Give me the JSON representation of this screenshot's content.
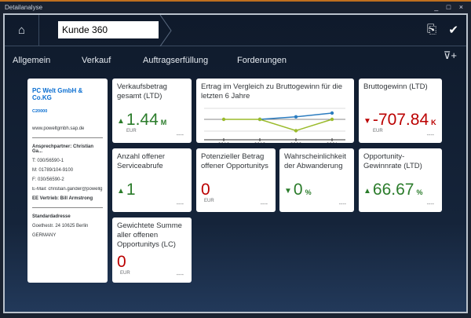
{
  "window": {
    "title": "Detailanalyse",
    "controls": "_ □ ×"
  },
  "header": {
    "title": "Kunde 360",
    "home_icon": "home-icon",
    "actions": [
      "add-document-icon",
      "check-icon"
    ]
  },
  "tabs": [
    "Allgemein",
    "Verkauf",
    "Auftragserfüllung",
    "Forderungen"
  ],
  "customer": {
    "name": "PC Welt GmbH & Co.KG",
    "id": "C20000",
    "web": "www.poweltgmbh.sap.de",
    "contact": "Ansprechpartner: Christian Ga...",
    "phone": "T: 030/56590-1",
    "mobile": "M: 01789/104-9100",
    "fax": "F: 030/56590-2",
    "email": "E-Mail: christian.gander@powellg...",
    "sales": "EE Vertrieb: Bill Armstrong",
    "address_label": "Standardadresse",
    "address": "Goethestr. 24  10625 Berlin",
    "country": "GERMANY"
  },
  "tiles": [
    {
      "title": "Verkaufsbetrag gesamt (LTD)",
      "value": "1.44",
      "scale": "M",
      "unit": "EUR",
      "trend": "up",
      "color": "#2b7c2b",
      "footer": "----"
    },
    {
      "title": "Bruttogewinn (LTD)",
      "value": "-707.84",
      "scale": "K",
      "unit": "EUR",
      "trend": "down",
      "color": "#bb0000",
      "footer": "----"
    },
    {
      "title": "Anzahl offener Serviceabrufe",
      "value": "1",
      "scale": "",
      "unit": "",
      "trend": "up",
      "color": "#2b7c2b",
      "footer": "----"
    },
    {
      "title": "Potenzieller Betrag offener Opportunitys",
      "value": "0",
      "scale": "",
      "unit": "EUR",
      "trend": "",
      "color": "#bb0000",
      "footer": "----"
    },
    {
      "title": "Wahrscheinlichkeit der Abwanderung",
      "value": "0",
      "scale": "%",
      "unit": "",
      "trend": "down",
      "color": "#2b7c2b",
      "footer": "----"
    },
    {
      "title": "Opportunity-Gewinnrate (LTD)",
      "value": "66.67",
      "scale": "%",
      "unit": "",
      "trend": "up",
      "color": "#2b7c2b",
      "footer": "----"
    },
    {
      "title": "Gewichtete Summe aller offenen Opportunitys (LC)",
      "value": "0",
      "scale": "",
      "unit": "EUR",
      "trend": "",
      "color": "#bb0000",
      "footer": "----"
    }
  ],
  "chart_data": {
    "type": "line",
    "title": "Ertrag im Vergleich zu Bruttogewinn für die letzten 6 Jahre",
    "categories": [
      "2016",
      "2019",
      "2020",
      "2021"
    ],
    "series": [
      {
        "color": "#2b7cc0",
        "values": [
          null,
          0,
          0.4,
          1.0
        ]
      },
      {
        "color": "#9bbb2c",
        "values": [
          0,
          0,
          -1.8,
          0
        ]
      }
    ]
  }
}
